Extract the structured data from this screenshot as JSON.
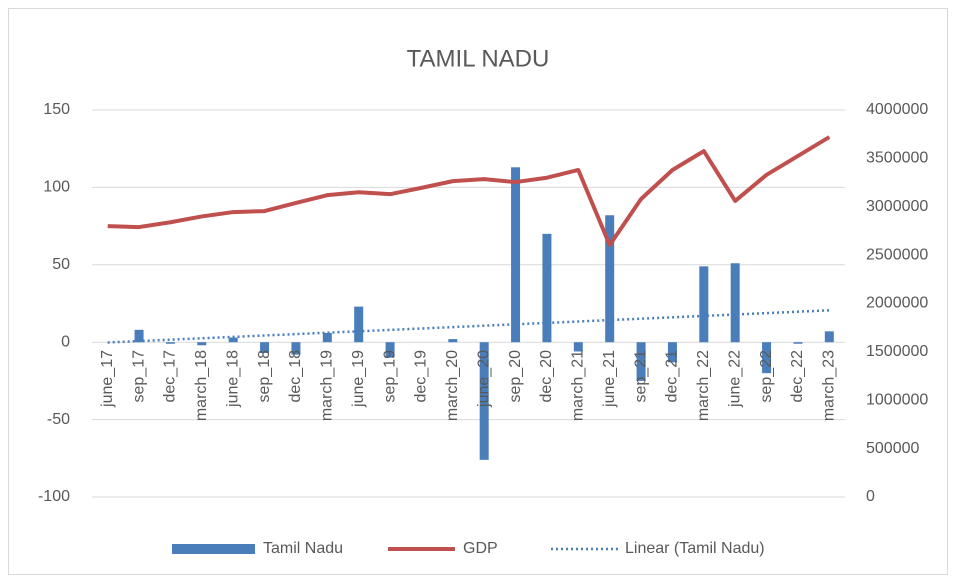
{
  "chart_data": {
    "type": "bar_line",
    "title": "TAMIL NADU",
    "categories": [
      "june_17",
      "sep_17",
      "dec_17",
      "march_18",
      "june_18",
      "sep_18",
      "dec_18",
      "march_19",
      "june_19",
      "sep_19",
      "dec_19",
      "march_20",
      "june_20",
      "sep_20",
      "dec_20",
      "march_21",
      "june_21",
      "sep_21",
      "dec_21",
      "march_22",
      "june_22",
      "sep_22",
      "dec_22",
      "march_23"
    ],
    "series": [
      {
        "name": "Tamil Nadu",
        "type": "bar",
        "color": "#4a7ebb",
        "values": [
          0,
          8,
          -1,
          -2,
          3,
          -7,
          -8,
          6,
          23,
          -10,
          0,
          2,
          -76,
          113,
          70,
          -6,
          82,
          -25,
          -13,
          49,
          51,
          -20,
          -1,
          7
        ]
      },
      {
        "name": "GDP",
        "type": "line",
        "axis": "y2",
        "color": "#c0504d",
        "values": [
          2800000,
          2790000,
          2840000,
          2900000,
          2945000,
          2955000,
          3040000,
          3120000,
          3150000,
          3130000,
          3195000,
          3265000,
          3285000,
          3255000,
          3300000,
          3380000,
          2605000,
          3080000,
          3380000,
          3575000,
          3060000,
          3330000,
          3525000,
          3720000
        ]
      }
    ],
    "trendline": {
      "name": "Linear (Tamil Nadu)",
      "color": "#4a7ebb"
    },
    "ylim": [
      -100,
      150
    ],
    "yticks": [
      -100,
      -50,
      0,
      50,
      100,
      150
    ],
    "y2lim": [
      0,
      4000000
    ],
    "y2ticks": [
      0,
      500000,
      1000000,
      1500000,
      2000000,
      2500000,
      3000000,
      3500000,
      4000000
    ],
    "grid": true,
    "legend": "bottom"
  }
}
